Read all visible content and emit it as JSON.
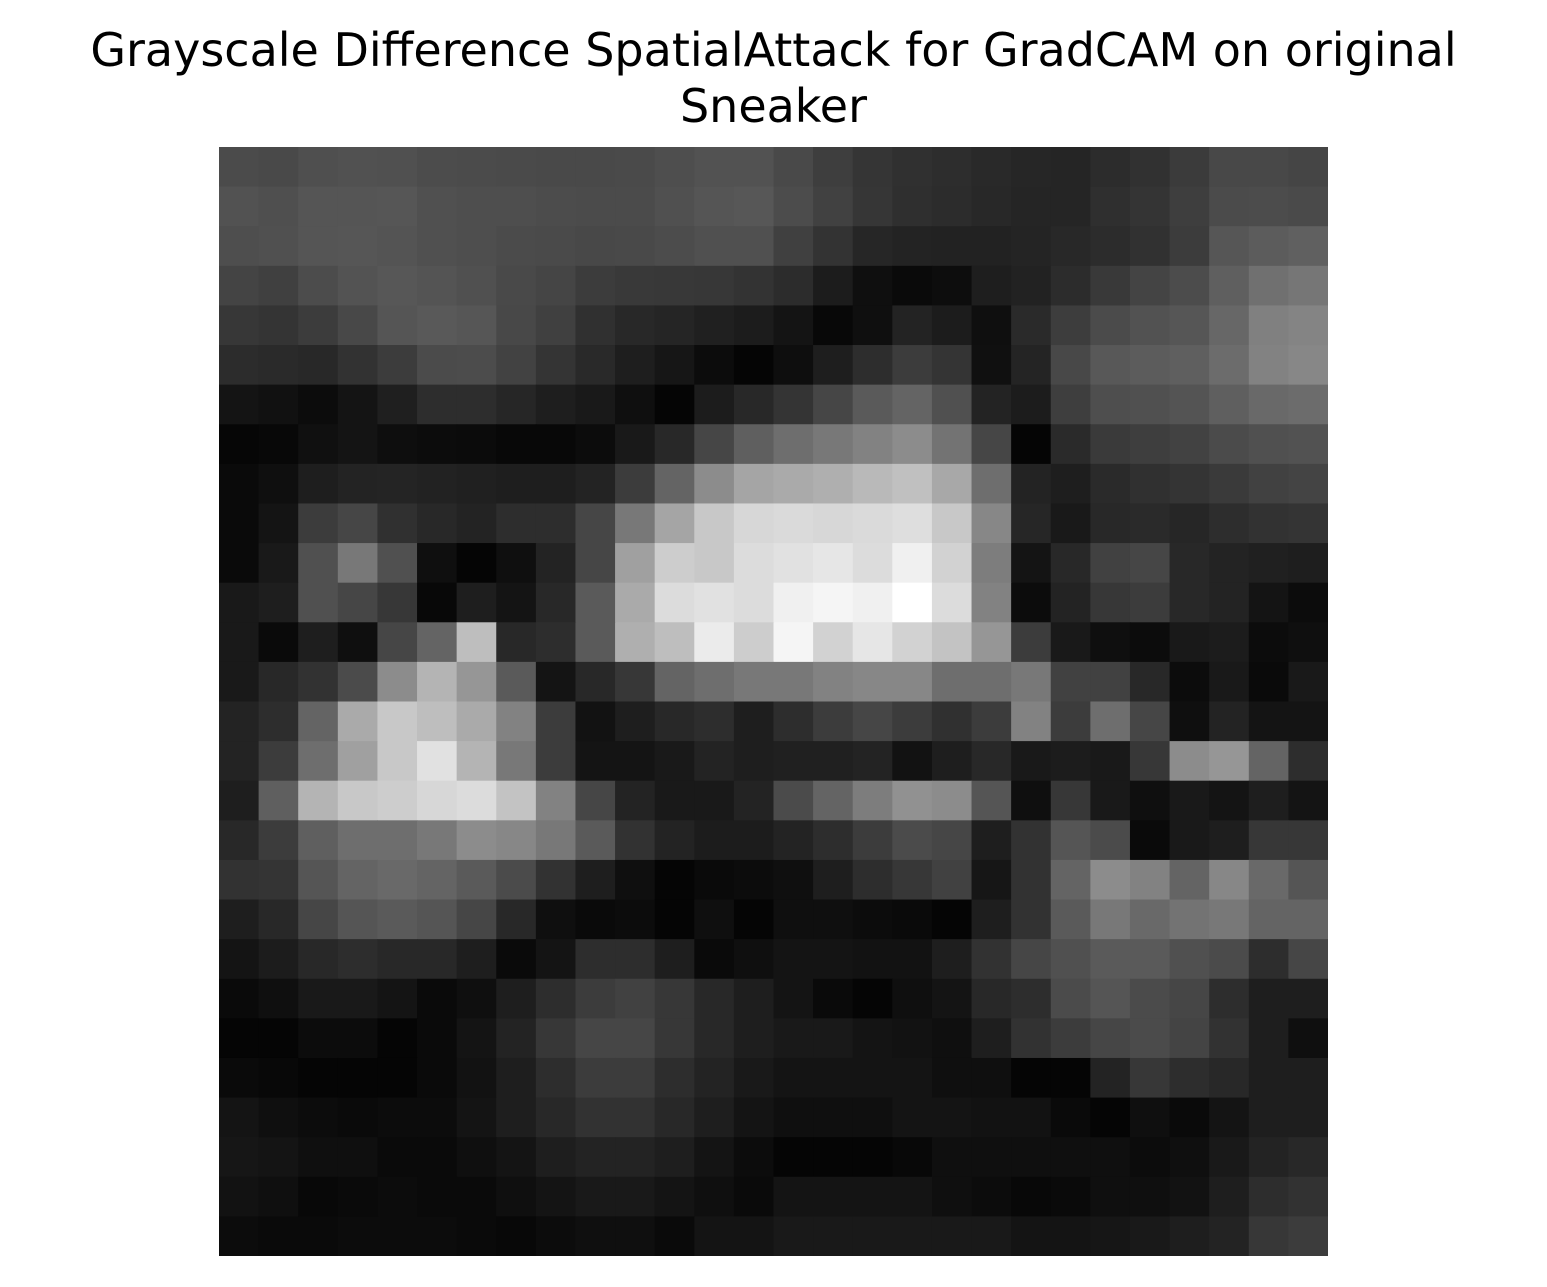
{
  "chart_data": {
    "type": "heatmap",
    "title_lines": [
      "Grayscale Difference SpatialAttack for GradCAM on original",
      "Sneaker"
    ],
    "colormap": "gray",
    "axes": "off",
    "grid": false,
    "legend": "none",
    "value_range": [
      0,
      255
    ],
    "values": [
      [
        75,
        73,
        79,
        81,
        80,
        76,
        75,
        74,
        73,
        73,
        74,
        78,
        82,
        82,
        73,
        62,
        53,
        48,
        45,
        41,
        38,
        37,
        44,
        49,
        59,
        72,
        72,
        69
      ],
      [
        82,
        79,
        85,
        85,
        86,
        80,
        78,
        78,
        76,
        75,
        75,
        80,
        85,
        87,
        76,
        65,
        54,
        47,
        44,
        40,
        37,
        37,
        47,
        52,
        62,
        75,
        76,
        74
      ],
      [
        78,
        80,
        85,
        86,
        84,
        80,
        78,
        75,
        74,
        72,
        73,
        76,
        80,
        80,
        64,
        51,
        38,
        35,
        34,
        34,
        36,
        40,
        44,
        49,
        60,
        86,
        92,
        96
      ],
      [
        68,
        64,
        76,
        83,
        87,
        84,
        80,
        73,
        69,
        60,
        57,
        56,
        55,
        51,
        44,
        28,
        15,
        10,
        13,
        30,
        34,
        44,
        57,
        68,
        76,
        95,
        112,
        118
      ],
      [
        55,
        52,
        60,
        72,
        85,
        89,
        86,
        72,
        64,
        48,
        40,
        37,
        32,
        28,
        20,
        8,
        15,
        35,
        28,
        15,
        42,
        61,
        75,
        82,
        86,
        103,
        128,
        132
      ],
      [
        44,
        42,
        40,
        50,
        60,
        75,
        76,
        66,
        52,
        41,
        30,
        22,
        12,
        5,
        14,
        30,
        45,
        60,
        52,
        16,
        36,
        72,
        88,
        92,
        95,
        108,
        130,
        135
      ],
      [
        20,
        17,
        12,
        20,
        31,
        45,
        45,
        38,
        30,
        25,
        15,
        5,
        28,
        40,
        52,
        70,
        90,
        100,
        80,
        35,
        28,
        62,
        78,
        80,
        84,
        95,
        105,
        108
      ],
      [
        6,
        8,
        16,
        20,
        14,
        12,
        11,
        8,
        8,
        12,
        25,
        40,
        70,
        95,
        110,
        120,
        130,
        140,
        115,
        70,
        5,
        42,
        58,
        62,
        66,
        75,
        80,
        82
      ],
      [
        10,
        15,
        30,
        35,
        36,
        34,
        32,
        30,
        30,
        35,
        60,
        100,
        140,
        165,
        170,
        175,
        185,
        192,
        168,
        110,
        35,
        30,
        42,
        48,
        52,
        58,
        65,
        68
      ],
      [
        10,
        20,
        60,
        70,
        48,
        40,
        35,
        45,
        45,
        70,
        120,
        165,
        200,
        215,
        218,
        215,
        218,
        222,
        200,
        135,
        38,
        25,
        40,
        42,
        38,
        45,
        50,
        52
      ],
      [
        10,
        25,
        80,
        120,
        80,
        15,
        5,
        15,
        35,
        70,
        160,
        205,
        200,
        220,
        225,
        230,
        220,
        240,
        210,
        125,
        20,
        40,
        65,
        70,
        40,
        35,
        32,
        30
      ],
      [
        25,
        30,
        80,
        70,
        55,
        8,
        30,
        20,
        40,
        90,
        170,
        220,
        225,
        220,
        240,
        245,
        240,
        255,
        220,
        130,
        12,
        35,
        55,
        60,
        40,
        35,
        20,
        12
      ],
      [
        25,
        10,
        30,
        15,
        70,
        100,
        190,
        40,
        45,
        90,
        175,
        190,
        235,
        205,
        245,
        210,
        230,
        210,
        195,
        150,
        60,
        25,
        15,
        12,
        25,
        28,
        12,
        15
      ],
      [
        25,
        40,
        50,
        75,
        140,
        180,
        150,
        90,
        20,
        40,
        55,
        100,
        110,
        120,
        120,
        130,
        135,
        135,
        110,
        110,
        120,
        65,
        65,
        40,
        12,
        25,
        10,
        25
      ],
      [
        35,
        45,
        100,
        170,
        200,
        190,
        170,
        130,
        60,
        18,
        30,
        40,
        45,
        30,
        45,
        60,
        70,
        60,
        48,
        60,
        130,
        60,
        110,
        70,
        15,
        35,
        20,
        20
      ],
      [
        35,
        60,
        110,
        160,
        200,
        225,
        180,
        120,
        60,
        20,
        20,
        25,
        35,
        30,
        32,
        32,
        35,
        18,
        30,
        40,
        25,
        28,
        25,
        55,
        140,
        150,
        100,
        45
      ],
      [
        30,
        95,
        180,
        200,
        205,
        215,
        220,
        195,
        130,
        70,
        35,
        25,
        25,
        35,
        75,
        100,
        125,
        145,
        140,
        85,
        15,
        55,
        25,
        15,
        25,
        20,
        30,
        20
      ],
      [
        40,
        60,
        95,
        110,
        110,
        120,
        140,
        135,
        120,
        90,
        50,
        35,
        28,
        28,
        35,
        45,
        60,
        75,
        70,
        30,
        50,
        85,
        75,
        10,
        25,
        30,
        55,
        55
      ],
      [
        50,
        52,
        85,
        100,
        105,
        100,
        90,
        75,
        50,
        30,
        15,
        5,
        10,
        12,
        15,
        30,
        45,
        55,
        65,
        22,
        50,
        100,
        140,
        130,
        100,
        135,
        105,
        85
      ],
      [
        30,
        40,
        70,
        85,
        90,
        85,
        70,
        40,
        15,
        10,
        12,
        5,
        15,
        5,
        15,
        15,
        12,
        10,
        5,
        30,
        50,
        90,
        120,
        105,
        115,
        120,
        100,
        100
      ],
      [
        20,
        28,
        40,
        45,
        40,
        40,
        30,
        10,
        20,
        45,
        45,
        30,
        10,
        15,
        20,
        20,
        18,
        18,
        30,
        50,
        70,
        80,
        90,
        90,
        80,
        75,
        45,
        70
      ],
      [
        10,
        15,
        25,
        25,
        20,
        10,
        15,
        30,
        45,
        60,
        65,
        55,
        40,
        30,
        20,
        10,
        5,
        15,
        20,
        40,
        45,
        75,
        85,
        75,
        70,
        45,
        30,
        30
      ],
      [
        5,
        5,
        12,
        12,
        5,
        10,
        20,
        35,
        55,
        70,
        70,
        55,
        40,
        30,
        25,
        25,
        20,
        18,
        15,
        30,
        50,
        60,
        70,
        75,
        68,
        50,
        30,
        15
      ],
      [
        10,
        8,
        5,
        5,
        5,
        10,
        18,
        30,
        45,
        60,
        60,
        45,
        35,
        25,
        20,
        20,
        20,
        20,
        15,
        15,
        5,
        5,
        35,
        55,
        45,
        40,
        30,
        30
      ],
      [
        20,
        15,
        12,
        10,
        12,
        12,
        20,
        30,
        40,
        50,
        50,
        40,
        30,
        20,
        15,
        15,
        15,
        20,
        20,
        18,
        18,
        10,
        5,
        15,
        10,
        20,
        30,
        30
      ],
      [
        22,
        20,
        15,
        15,
        10,
        10,
        15,
        20,
        30,
        35,
        35,
        30,
        20,
        12,
        5,
        5,
        5,
        8,
        15,
        15,
        15,
        15,
        15,
        12,
        15,
        25,
        35,
        40
      ],
      [
        18,
        15,
        8,
        10,
        12,
        10,
        10,
        15,
        20,
        25,
        25,
        20,
        15,
        10,
        20,
        20,
        20,
        20,
        15,
        12,
        8,
        10,
        15,
        15,
        18,
        30,
        45,
        50
      ],
      [
        12,
        10,
        10,
        12,
        12,
        12,
        10,
        8,
        12,
        15,
        15,
        10,
        20,
        20,
        25,
        25,
        25,
        25,
        25,
        25,
        20,
        20,
        22,
        25,
        30,
        35,
        55,
        60
      ]
    ]
  }
}
